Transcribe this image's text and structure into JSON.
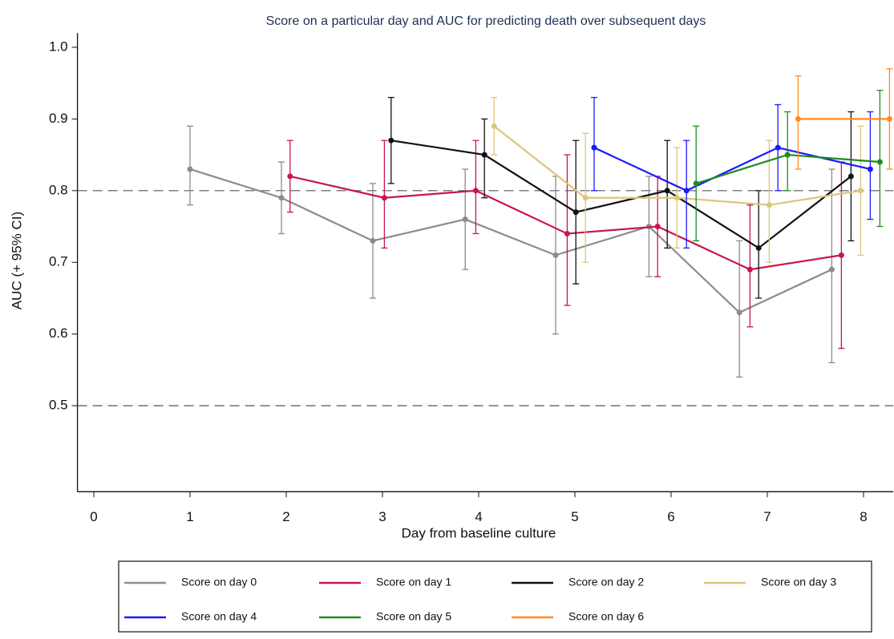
{
  "chart_data": {
    "type": "line",
    "title": "Score on a particular day and AUC for predicting death over subsequent days",
    "x_label": "Day from baseline culture",
    "y_label": "AUC (+ 95% CI)",
    "xlim": [
      -0.17,
      8.31
    ],
    "xticks": [
      0,
      1,
      2,
      3,
      4,
      5,
      6,
      7,
      8
    ],
    "ylim": [
      0.38,
      1.02
    ],
    "yticks": [
      0.5,
      0.6,
      0.7,
      0.8,
      0.9,
      {
        "value": 1,
        "label": "1.0"
      }
    ],
    "reference_lines": [
      0.5,
      0.8
    ],
    "series": [
      {
        "name": "Score on day 0",
        "color": "#8c8c8c",
        "x": [
          1.0,
          1.95,
          2.9,
          3.86,
          4.8,
          5.77,
          6.71,
          7.67
        ],
        "values": [
          0.83,
          0.79,
          0.73,
          0.76,
          0.71,
          0.75,
          0.63,
          0.69
        ],
        "lower": [
          0.78,
          0.74,
          0.65,
          0.69,
          0.6,
          0.68,
          0.54,
          0.56
        ],
        "upper": [
          0.89,
          0.84,
          0.81,
          0.83,
          0.82,
          0.82,
          0.73,
          0.83
        ]
      },
      {
        "name": "Score on day 1",
        "color": "#c8174a",
        "x": [
          2.04,
          3.02,
          3.97,
          4.92,
          5.86,
          6.82,
          7.77
        ],
        "values": [
          0.82,
          0.79,
          0.8,
          0.74,
          0.75,
          0.69,
          0.71
        ],
        "lower": [
          0.77,
          0.72,
          0.74,
          0.64,
          0.68,
          0.61,
          0.58
        ],
        "upper": [
          0.87,
          0.87,
          0.87,
          0.85,
          0.82,
          0.78,
          0.84
        ]
      },
      {
        "name": "Score on day 2",
        "color": "#111111",
        "x": [
          3.09,
          4.06,
          5.01,
          5.96,
          6.91,
          7.87
        ],
        "values": [
          0.87,
          0.85,
          0.77,
          0.8,
          0.72,
          0.82
        ],
        "lower": [
          0.81,
          0.79,
          0.67,
          0.72,
          0.65,
          0.73
        ],
        "upper": [
          0.93,
          0.9,
          0.87,
          0.87,
          0.8,
          0.91
        ]
      },
      {
        "name": "Score on day 3",
        "color": "#dcc67a",
        "x": [
          4.16,
          5.11,
          6.06,
          7.02,
          7.97
        ],
        "values": [
          0.89,
          0.79,
          0.79,
          0.78,
          0.8
        ],
        "lower": [
          0.85,
          0.7,
          0.72,
          0.7,
          0.71
        ],
        "upper": [
          0.93,
          0.88,
          0.86,
          0.87,
          0.89
        ]
      },
      {
        "name": "Score on day 4",
        "color": "#1a1aff",
        "x": [
          5.2,
          6.16,
          7.11,
          8.07
        ],
        "values": [
          0.86,
          0.8,
          0.86,
          0.83
        ],
        "lower": [
          0.8,
          0.72,
          0.8,
          0.76
        ],
        "upper": [
          0.93,
          0.87,
          0.92,
          0.91
        ]
      },
      {
        "name": "Score on day 5",
        "color": "#1e8c1e",
        "x": [
          6.26,
          7.21,
          8.17
        ],
        "values": [
          0.81,
          0.85,
          0.84
        ],
        "lower": [
          0.73,
          0.8,
          0.75
        ],
        "upper": [
          0.89,
          0.91,
          0.94
        ]
      },
      {
        "name": "Score on day 6",
        "color": "#ff8c1a",
        "x": [
          7.32,
          8.27
        ],
        "values": [
          0.9,
          0.9
        ],
        "lower": [
          0.83,
          0.83
        ],
        "upper": [
          0.96,
          0.97
        ]
      }
    ]
  }
}
